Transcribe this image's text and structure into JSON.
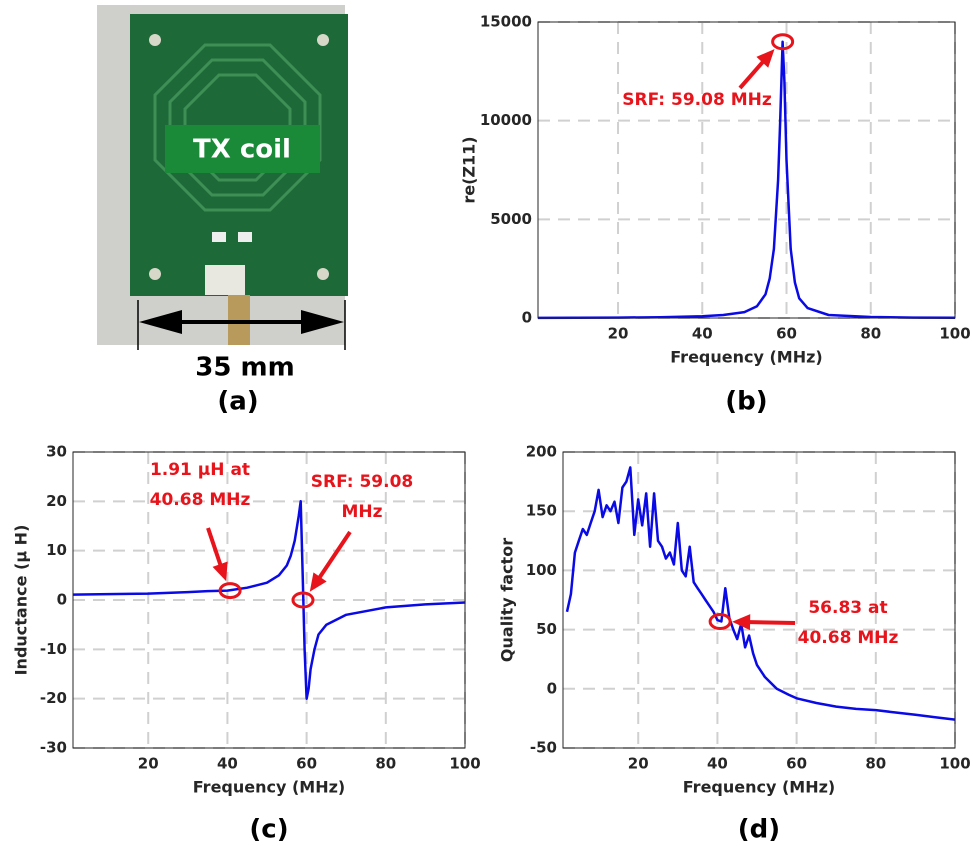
{
  "photo": {
    "label": "TX coil",
    "dimension": "35 mm",
    "caption": "(a)"
  },
  "chart_data": [
    {
      "type": "line",
      "ylabel": "re(Z11)",
      "xlabel": "Frequency (MHz)",
      "caption": "(b)",
      "x": [
        1,
        10,
        20,
        30,
        40,
        45,
        50,
        53,
        55,
        56,
        57,
        58,
        58.5,
        59.08,
        59.5,
        60,
        61,
        62,
        63,
        65,
        70,
        80,
        90,
        100
      ],
      "series": [
        {
          "color": "#0a0ae6",
          "values": [
            5,
            10,
            20,
            40,
            90,
            150,
            300,
            600,
            1200,
            2000,
            3500,
            7000,
            10000,
            14000,
            12000,
            8000,
            3500,
            1800,
            1000,
            500,
            150,
            50,
            20,
            10
          ]
        }
      ],
      "xlim": [
        1,
        100
      ],
      "xticks": [
        20,
        40,
        60,
        80,
        100
      ],
      "ylim": [
        0,
        15000
      ],
      "yticks": [
        0,
        5000,
        10000,
        15000
      ],
      "grid": true,
      "annotations": [
        {
          "text": [
            "SRF: 59.08 MHz"
          ],
          "x": 59.08,
          "y": 14000,
          "color": "#e8141c"
        }
      ]
    },
    {
      "type": "line",
      "ylabel": "Inductance (μ H)",
      "xlabel": "Frequency (MHz)",
      "caption": "(c)",
      "x": [
        1,
        10,
        20,
        30,
        35,
        40,
        45,
        50,
        53,
        55,
        56,
        57,
        58,
        58.5,
        59,
        59.5,
        60,
        60.5,
        61,
        62,
        63,
        65,
        70,
        80,
        90,
        100
      ],
      "series": [
        {
          "color": "#0a0ae6",
          "values": [
            1.1,
            1.2,
            1.3,
            1.6,
            1.8,
            1.91,
            2.5,
            3.5,
            5,
            7,
            9,
            12,
            17,
            20,
            5,
            -10,
            -20,
            -18,
            -14,
            -10,
            -7,
            -5,
            -3,
            -1.5,
            -0.9,
            -0.5
          ]
        }
      ],
      "xlim": [
        1,
        100
      ],
      "xticks": [
        20,
        40,
        60,
        80,
        100
      ],
      "ylim": [
        -30,
        30
      ],
      "yticks": [
        -30,
        -20,
        -10,
        0,
        10,
        20,
        30
      ],
      "grid": true,
      "annotations": [
        {
          "text": [
            "1.91 μH at",
            "40.68 MHz"
          ],
          "x": 40.68,
          "y": 1.91,
          "color": "#e8141c"
        },
        {
          "text": [
            "SRF: 59.08",
            "MHz"
          ],
          "x": 59.08,
          "y": 0,
          "color": "#e8141c"
        }
      ]
    },
    {
      "type": "line",
      "ylabel": "Quality factor",
      "xlabel": "Frequency (MHz)",
      "caption": "(d)",
      "x": [
        2,
        3,
        4,
        5,
        6,
        7,
        8,
        9,
        10,
        11,
        12,
        13,
        14,
        15,
        16,
        17,
        18,
        19,
        20,
        21,
        22,
        23,
        24,
        25,
        26,
        27,
        28,
        29,
        30,
        31,
        32,
        33,
        34,
        35,
        36,
        37,
        38,
        39,
        40,
        41,
        42,
        43,
        44,
        45,
        46,
        47,
        48,
        49,
        50,
        52,
        55,
        58,
        60,
        65,
        70,
        75,
        80,
        85,
        90,
        95,
        100
      ],
      "series": [
        {
          "color": "#0a0ae6",
          "values": [
            65,
            80,
            115,
            125,
            135,
            130,
            140,
            150,
            168,
            145,
            155,
            150,
            158,
            140,
            170,
            175,
            187,
            130,
            160,
            138,
            165,
            120,
            165,
            125,
            120,
            110,
            115,
            105,
            140,
            100,
            95,
            120,
            90,
            85,
            80,
            75,
            70,
            65,
            58,
            56.83,
            85,
            60,
            50,
            42,
            55,
            35,
            45,
            30,
            20,
            10,
            0,
            -5,
            -8,
            -12,
            -15,
            -17,
            -18,
            -20,
            -22,
            -24,
            -26
          ]
        }
      ],
      "xlim": [
        1,
        100
      ],
      "xticks": [
        20,
        40,
        60,
        80,
        100
      ],
      "ylim": [
        -50,
        200
      ],
      "yticks": [
        -50,
        0,
        50,
        100,
        150,
        200
      ],
      "grid": true,
      "annotations": [
        {
          "text": [
            "56.83 at",
            "40.68 MHz"
          ],
          "x": 40.68,
          "y": 56.83,
          "color": "#e8141c"
        }
      ]
    }
  ]
}
